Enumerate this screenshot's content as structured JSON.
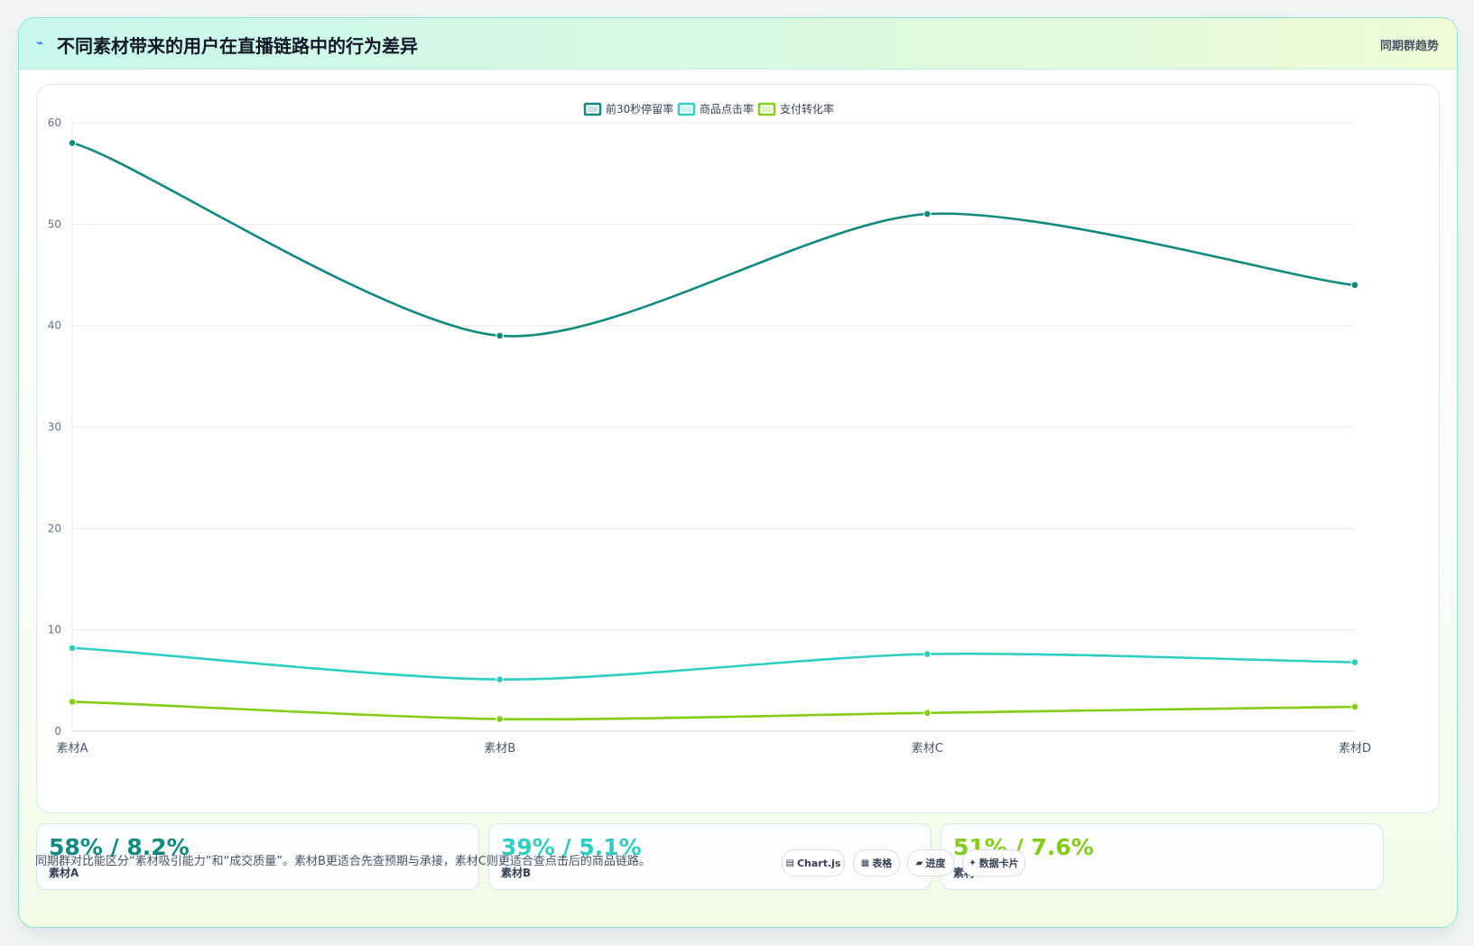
{
  "header": {
    "icon": "lightning-icon",
    "title": "不同素材带来的用户在直播链路中的行为差异",
    "subtitle": "同期群趋势"
  },
  "chart_data": {
    "type": "line",
    "categories": [
      "素材A",
      "素材B",
      "素材C",
      "素材D"
    ],
    "series": [
      {
        "name": "前30秒停留率",
        "values": [
          58,
          39,
          51,
          44
        ],
        "color": "#11897f"
      },
      {
        "name": "商品点击率",
        "values": [
          8.2,
          5.1,
          7.6,
          6.8
        ],
        "color": "#2ecfc0"
      },
      {
        "name": "支付转化率",
        "values": [
          2.9,
          1.2,
          1.8,
          2.4
        ],
        "color": "#84cc16"
      }
    ],
    "ylim": [
      0,
      60
    ],
    "yticks": [
      0,
      10,
      20,
      30,
      40,
      50,
      60
    ],
    "grid": true,
    "legend": "top-center",
    "curve": "smooth"
  },
  "stats": [
    {
      "value": "58% / 8.2%",
      "label": "素材A",
      "color": "#11897f"
    },
    {
      "value": "39% / 5.1%",
      "label": "素材B",
      "color": "#2ecfc0"
    },
    {
      "value": "51% / 7.6%",
      "label": "素材C",
      "color": "#84cc16"
    }
  ],
  "footer": {
    "note": "同期群对比能区分“素材吸引能力”和“成交质量”。素材B更适合先查预期与承接，素材C则更适合查点击后的商品链路。",
    "pills": [
      {
        "icon": "chart-icon",
        "glyph": "▤",
        "label": "Chart.js"
      },
      {
        "icon": "table-icon",
        "glyph": "▦",
        "label": "表格"
      },
      {
        "icon": "progress-icon",
        "glyph": "▰",
        "label": "进度"
      },
      {
        "icon": "sparkle-icon",
        "glyph": "✦",
        "label": "数据卡片"
      }
    ]
  }
}
